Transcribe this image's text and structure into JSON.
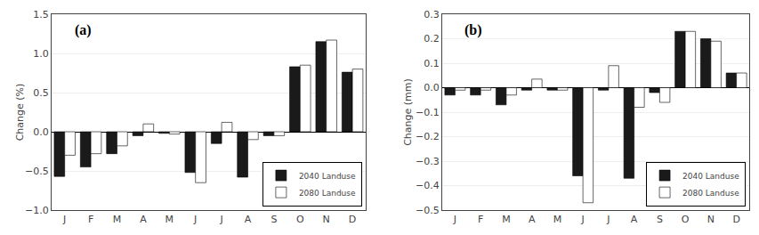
{
  "chart_data": [
    {
      "type": "bar",
      "title": "(a)",
      "ylabel": "Change (%)",
      "categories": [
        "J",
        "F",
        "M",
        "A",
        "M",
        "J",
        "J",
        "A",
        "S",
        "O",
        "N",
        "D"
      ],
      "series": [
        {
          "name": "2040 Landuse",
          "color": "#1a1a1a",
          "values": [
            -0.57,
            -0.45,
            -0.28,
            -0.05,
            -0.02,
            -0.52,
            -0.15,
            -0.58,
            -0.05,
            0.83,
            1.15,
            0.76
          ]
        },
        {
          "name": "2080 Landuse",
          "color": "#ffffff",
          "values": [
            -0.3,
            -0.28,
            -0.18,
            0.1,
            -0.03,
            -0.65,
            0.12,
            -0.1,
            -0.05,
            0.85,
            1.17,
            0.8
          ]
        }
      ],
      "ylim": [
        -1.0,
        1.5
      ],
      "yticks": [
        {
          "value": -1.0,
          "label": "−1.0"
        },
        {
          "value": -0.5,
          "label": "−0.5"
        },
        {
          "value": 0.0,
          "label": "0.0"
        },
        {
          "value": 0.5,
          "label": "0.5"
        },
        {
          "value": 1.0,
          "label": "1.0"
        },
        {
          "value": 1.5,
          "label": "1.5"
        }
      ],
      "grid": true,
      "legend": "lower right"
    },
    {
      "type": "bar",
      "title": "(b)",
      "ylabel": "Change (mm)",
      "categories": [
        "J",
        "F",
        "M",
        "A",
        "M",
        "J",
        "J",
        "A",
        "S",
        "O",
        "N",
        "D"
      ],
      "series": [
        {
          "name": "2040 Landuse",
          "color": "#1a1a1a",
          "values": [
            -0.03,
            -0.03,
            -0.07,
            -0.01,
            -0.01,
            -0.36,
            -0.01,
            -0.37,
            -0.02,
            0.23,
            0.2,
            0.06
          ]
        },
        {
          "name": "2080 Landuse",
          "color": "#ffffff",
          "values": [
            -0.01,
            -0.01,
            -0.03,
            0.035,
            -0.01,
            -0.47,
            0.09,
            -0.08,
            -0.06,
            0.23,
            0.19,
            0.06
          ]
        }
      ],
      "ylim": [
        -0.5,
        0.3
      ],
      "yticks": [
        {
          "value": -0.5,
          "label": "−0.5"
        },
        {
          "value": -0.4,
          "label": "−0.4"
        },
        {
          "value": -0.3,
          "label": "−0.3"
        },
        {
          "value": -0.2,
          "label": "−0.2"
        },
        {
          "value": -0.1,
          "label": "−0.1"
        },
        {
          "value": 0.0,
          "label": "0.0"
        },
        {
          "value": 0.1,
          "label": "0.1"
        },
        {
          "value": 0.2,
          "label": "0.2"
        },
        {
          "value": 0.3,
          "label": "0.3"
        }
      ],
      "grid": true,
      "legend": "lower right"
    }
  ]
}
